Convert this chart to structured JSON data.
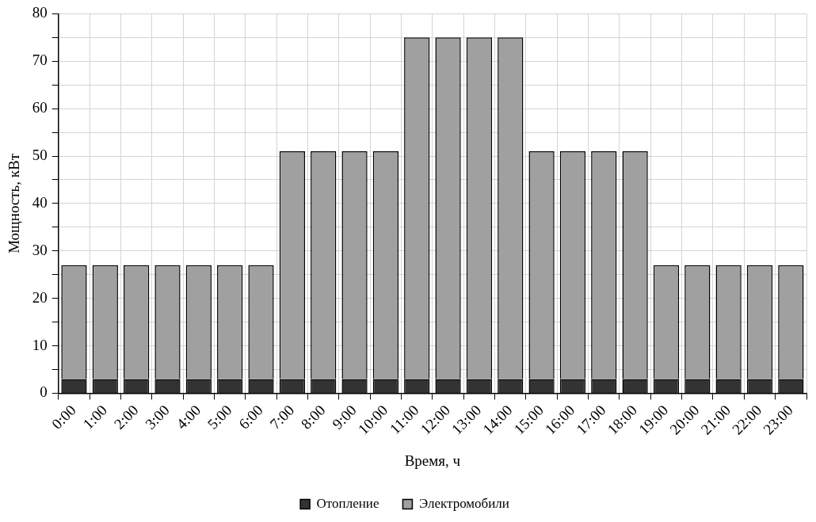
{
  "chart_data": {
    "type": "bar",
    "stacked": true,
    "xlabel": "Время, ч",
    "ylabel": "Мощность, кВт",
    "categories": [
      "0:00",
      "1:00",
      "2:00",
      "3:00",
      "4:00",
      "5:00",
      "6:00",
      "7:00",
      "8:00",
      "9:00",
      "10:00",
      "11:00",
      "12:00",
      "13:00",
      "14:00",
      "15:00",
      "16:00",
      "17:00",
      "18:00",
      "19:00",
      "20:00",
      "21:00",
      "22:00",
      "23:00"
    ],
    "series": [
      {
        "name": "Отопление",
        "color": "#333333",
        "values": [
          3,
          3,
          3,
          3,
          3,
          3,
          3,
          3,
          3,
          3,
          3,
          3,
          3,
          3,
          3,
          3,
          3,
          3,
          3,
          3,
          3,
          3,
          3,
          3
        ]
      },
      {
        "name": "Электромобили",
        "color": "#a0a0a0",
        "values": [
          24,
          24,
          24,
          24,
          24,
          24,
          24,
          48,
          48,
          48,
          48,
          72,
          72,
          72,
          72,
          48,
          48,
          48,
          48,
          24,
          24,
          24,
          24,
          24
        ]
      }
    ],
    "ylim": [
      0,
      80
    ],
    "yticks": [
      0,
      {
        "value": 5,
        "label": null
      },
      10,
      {
        "value": 15,
        "label": null
      },
      20,
      {
        "value": 25,
        "label": null
      },
      30,
      {
        "value": 35,
        "label": null
      },
      40,
      {
        "value": 45,
        "label": null
      },
      50,
      {
        "value": 55,
        "label": null
      },
      60,
      {
        "value": 65,
        "label": null
      },
      70,
      {
        "value": 75,
        "label": null
      },
      80
    ],
    "grid": true,
    "legend": "bottom"
  }
}
